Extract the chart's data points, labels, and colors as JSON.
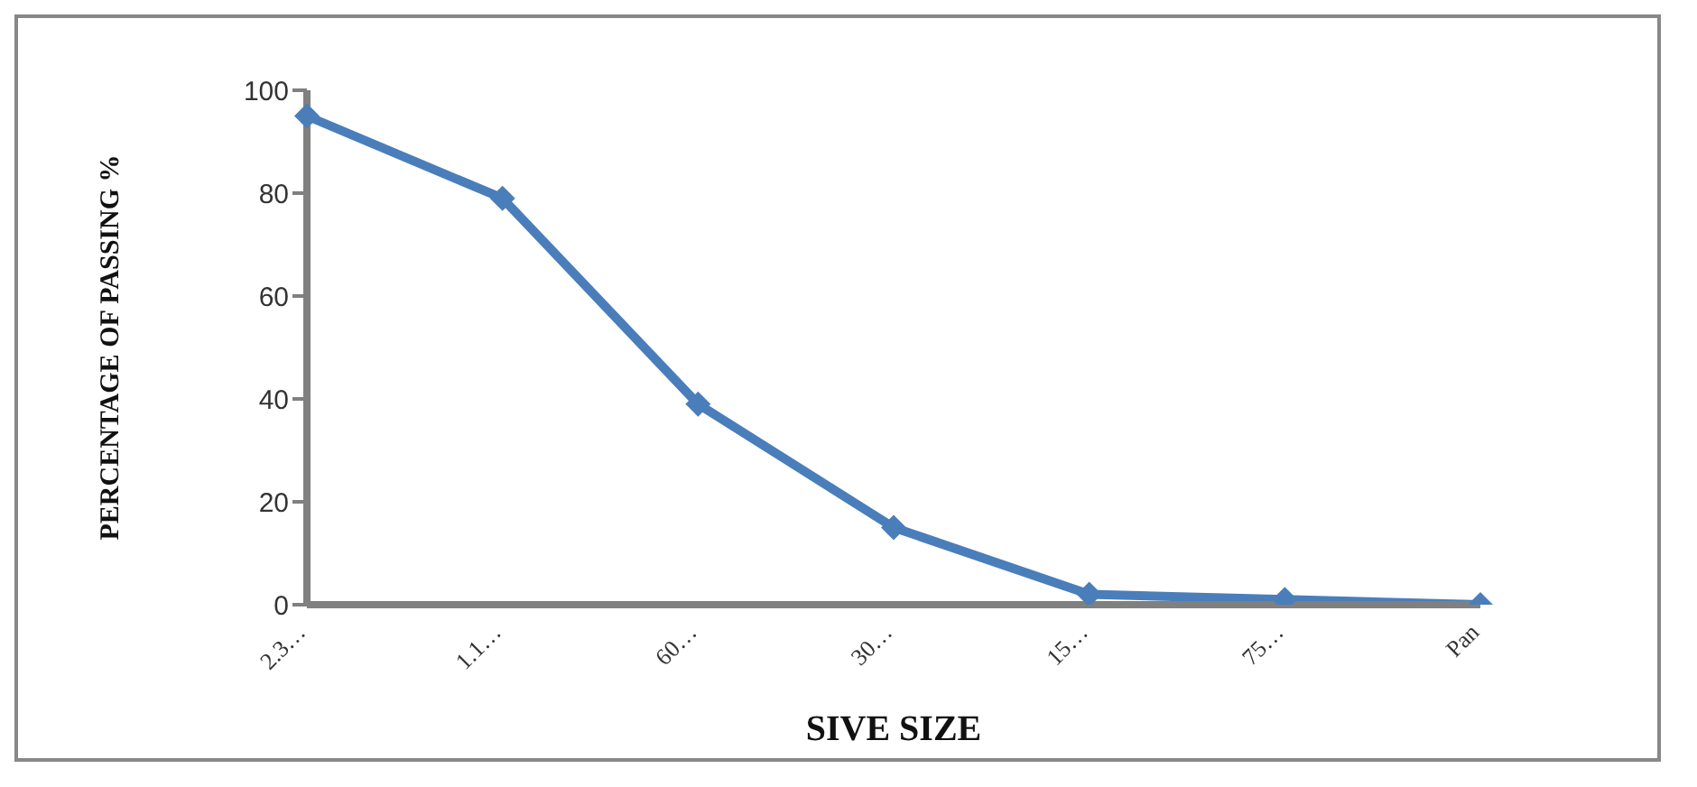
{
  "chart_data": {
    "type": "line",
    "xlabel": "SIVE SIZE",
    "ylabel": "PERCENTAGE OF PASSING %",
    "categories": [
      "2.3…",
      "1.1…",
      "60…",
      "30…",
      "15…",
      "75…",
      "Pan"
    ],
    "series": [
      {
        "color": "#4a7ebb",
        "values": [
          95,
          79,
          39,
          15,
          2,
          1,
          0
        ]
      }
    ],
    "ylim": [
      0,
      100
    ],
    "yticks": [
      0,
      20,
      40,
      60,
      80,
      100
    ],
    "grid": false,
    "legend": false,
    "marker": "diamond",
    "line_style": "solid"
  }
}
